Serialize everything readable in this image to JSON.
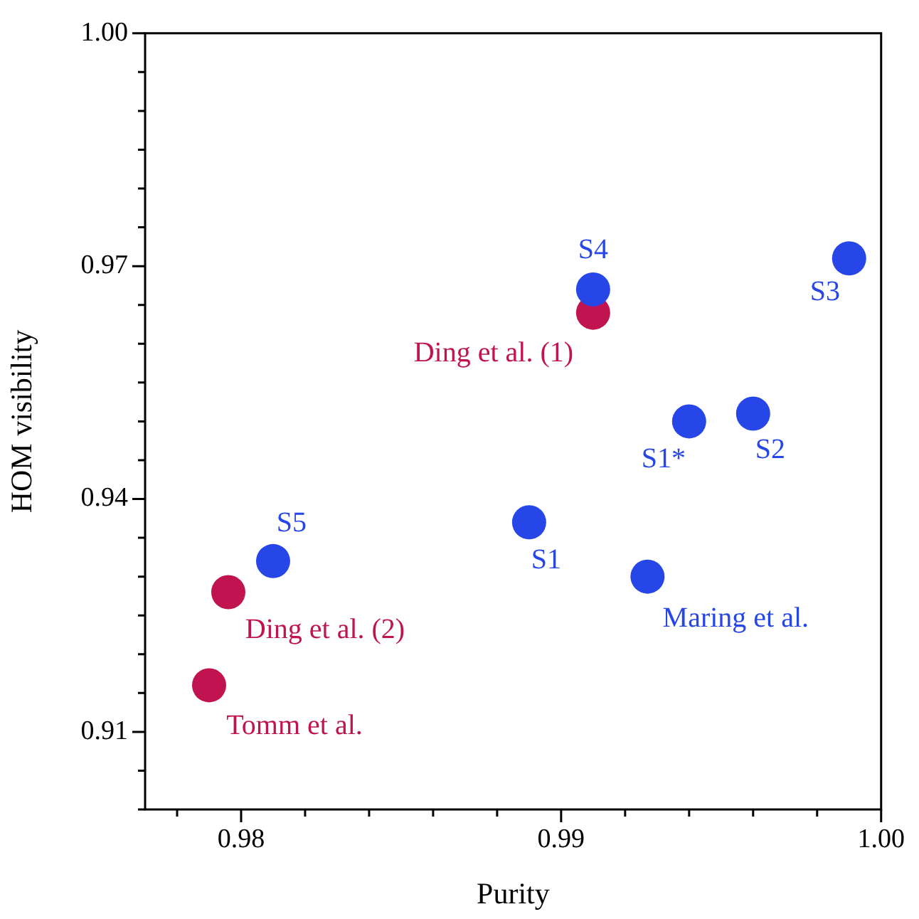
{
  "chart_data": {
    "type": "scatter",
    "xlabel": "Purity",
    "ylabel": "HOM visibility",
    "marker": "circle",
    "grid": false,
    "legend": false,
    "xlim": [
      0.977,
      1.0
    ],
    "xticks": [
      {
        "value": 0.978,
        "label": null
      },
      {
        "value": 0.98,
        "label": "0.98"
      },
      {
        "value": 0.982,
        "label": null
      },
      {
        "value": 0.984,
        "label": null
      },
      {
        "value": 0.986,
        "label": null
      },
      {
        "value": 0.988,
        "label": null
      },
      {
        "value": 0.99,
        "label": "0.99"
      },
      {
        "value": 0.992,
        "label": null
      },
      {
        "value": 0.994,
        "label": null
      },
      {
        "value": 0.996,
        "label": null
      },
      {
        "value": 0.998,
        "label": null
      },
      {
        "value": 1.0,
        "label": "1.00"
      }
    ],
    "ylim": [
      0.9,
      1.0
    ],
    "yticks": [
      {
        "value": 0.9,
        "label": null
      },
      {
        "value": 0.905,
        "label": null
      },
      {
        "value": 0.91,
        "label": "0.91"
      },
      {
        "value": 0.915,
        "label": null
      },
      {
        "value": 0.92,
        "label": null
      },
      {
        "value": 0.925,
        "label": null
      },
      {
        "value": 0.93,
        "label": null
      },
      {
        "value": 0.935,
        "label": null
      },
      {
        "value": 0.94,
        "label": "0.94"
      },
      {
        "value": 0.945,
        "label": null
      },
      {
        "value": 0.95,
        "label": null
      },
      {
        "value": 0.955,
        "label": null
      },
      {
        "value": 0.96,
        "label": null
      },
      {
        "value": 0.965,
        "label": null
      },
      {
        "value": 0.97,
        "label": "0.97"
      },
      {
        "value": 0.975,
        "label": null
      },
      {
        "value": 0.98,
        "label": null
      },
      {
        "value": 0.985,
        "label": null
      },
      {
        "value": 0.99,
        "label": null
      },
      {
        "value": 0.995,
        "label": null
      },
      {
        "value": 1.0,
        "label": "1.00"
      }
    ],
    "series": [
      {
        "color": "#2746e8",
        "x": [
          0.991,
          0.999,
          0.996,
          0.994,
          0.989,
          0.9927,
          0.981
        ],
        "values": [
          0.967,
          0.971,
          0.951,
          0.95,
          0.937,
          0.93,
          0.932
        ]
      },
      {
        "color": "#c0134f",
        "x": [
          0.991,
          0.9796,
          0.979
        ],
        "values": [
          0.964,
          0.928,
          0.916
        ]
      }
    ],
    "annotations": [
      {
        "text": "S4",
        "x": 0.991,
        "y": 0.967
      },
      {
        "text": "Ding et al. (1)",
        "x": 0.991,
        "y": 0.964
      },
      {
        "text": "S3",
        "x": 0.999,
        "y": 0.971
      },
      {
        "text": "S2",
        "x": 0.996,
        "y": 0.951
      },
      {
        "text": "S1*",
        "x": 0.994,
        "y": 0.95
      },
      {
        "text": "S1",
        "x": 0.989,
        "y": 0.937
      },
      {
        "text": "Maring et al.",
        "x": 0.9927,
        "y": 0.93
      },
      {
        "text": "S5",
        "x": 0.981,
        "y": 0.932
      },
      {
        "text": "Ding et al. (2)",
        "x": 0.9796,
        "y": 0.928
      },
      {
        "text": "Tomm et al.",
        "x": 0.979,
        "y": 0.916
      }
    ]
  }
}
